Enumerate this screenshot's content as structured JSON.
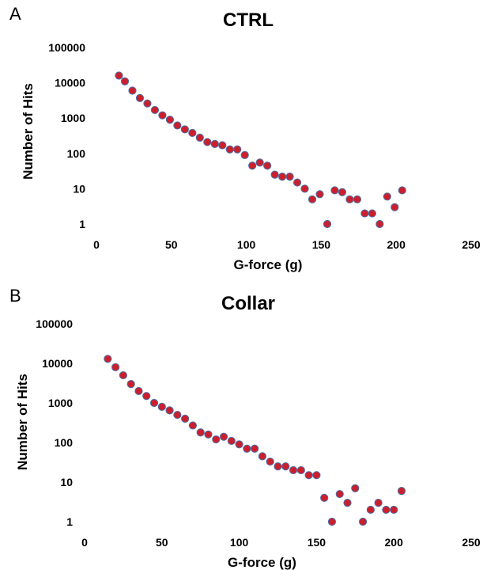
{
  "chart_data": [
    {
      "panel_label": "A",
      "type": "scatter",
      "title": "CTRL",
      "xlabel": "G-force (g)",
      "ylabel": "Number of Hits",
      "xlim": [
        0,
        250
      ],
      "ylim": [
        1,
        100000
      ],
      "yscale": "log",
      "x_ticks": [
        "0",
        "50",
        "100",
        "150",
        "200",
        "250"
      ],
      "y_ticks": [
        "1",
        "10",
        "100",
        "1000",
        "10000",
        "100000"
      ],
      "grid": false,
      "marker_color": "#cc1f2e",
      "marker_edge_color": "#4a6fa5",
      "series": [
        {
          "x": [
            15,
            19,
            24,
            29,
            34,
            39,
            44,
            49,
            54,
            59,
            64,
            69,
            74,
            79,
            84,
            89,
            94,
            99,
            104,
            109,
            114,
            119,
            124,
            129,
            134,
            139,
            144,
            149,
            154,
            159,
            164,
            169,
            174,
            179,
            184,
            189,
            194,
            199,
            204
          ],
          "y": [
            16000,
            11000,
            6000,
            3700,
            2600,
            1700,
            1200,
            900,
            620,
            480,
            380,
            280,
            210,
            185,
            170,
            130,
            130,
            90,
            45,
            55,
            45,
            25,
            22,
            22,
            15,
            10,
            5,
            7,
            1,
            9,
            8,
            5,
            5,
            2,
            2,
            1,
            6,
            3,
            9
          ]
        }
      ]
    },
    {
      "panel_label": "B",
      "type": "scatter",
      "title": "Collar",
      "xlabel": "G-force (g)",
      "ylabel": "Number of Hits",
      "xlim": [
        0,
        250
      ],
      "ylim": [
        1,
        100000
      ],
      "yscale": "log",
      "x_ticks": [
        "0",
        "50",
        "100",
        "150",
        "200",
        "250"
      ],
      "y_ticks": [
        "1",
        "10",
        "100",
        "1000",
        "10000",
        "100000"
      ],
      "grid": false,
      "marker_color": "#cc1f2e",
      "marker_edge_color": "#4a6fa5",
      "series": [
        {
          "x": [
            15,
            20,
            25,
            30,
            35,
            40,
            45,
            50,
            55,
            60,
            65,
            70,
            75,
            80,
            85,
            90,
            95,
            100,
            105,
            110,
            115,
            120,
            125,
            130,
            135,
            140,
            145,
            150,
            155,
            160,
            165,
            170,
            175,
            180,
            185,
            190,
            195,
            200,
            205
          ],
          "y": [
            13000,
            8000,
            5000,
            3000,
            2000,
            1500,
            1000,
            800,
            650,
            500,
            400,
            270,
            180,
            160,
            120,
            140,
            110,
            90,
            70,
            70,
            45,
            33,
            25,
            25,
            20,
            20,
            15,
            15,
            4,
            1,
            5,
            3,
            7,
            1,
            2,
            3,
            2,
            2,
            6
          ]
        }
      ]
    }
  ]
}
